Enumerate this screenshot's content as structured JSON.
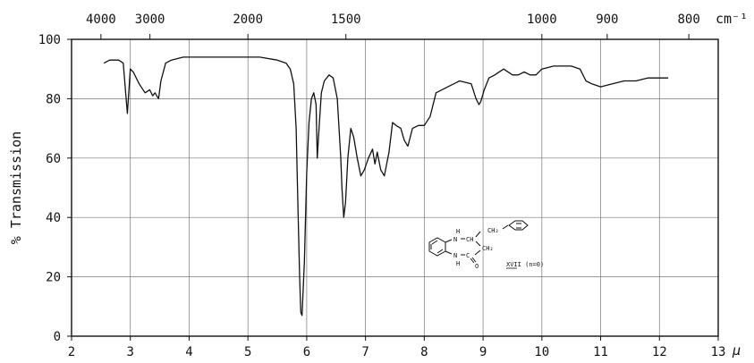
{
  "chart_data": {
    "type": "line",
    "ylabel": "% Transmission",
    "bottom_axis": {
      "unit": "μ",
      "range": [
        2,
        13
      ],
      "ticks": [
        2,
        3,
        4,
        5,
        6,
        7,
        8,
        9,
        10,
        11,
        12,
        13
      ],
      "tick_labels": [
        "2",
        "3",
        "4",
        "5",
        "6",
        "7",
        "8",
        "9",
        "10",
        "11",
        "12",
        "13"
      ]
    },
    "top_axis": {
      "unit": "cm⁻¹",
      "ticks": [
        4000,
        3000,
        2000,
        1500,
        1000,
        900,
        800
      ],
      "tick_labels": [
        "4000",
        "3000",
        "2000",
        "1500",
        "1000",
        "900",
        "800"
      ]
    },
    "y_axis": {
      "range": [
        0,
        100
      ],
      "ticks": [
        0,
        20,
        40,
        60,
        80,
        100
      ],
      "tick_labels": [
        "0",
        "20",
        "40",
        "60",
        "80",
        "100"
      ]
    },
    "grid": true,
    "series": [
      {
        "x": [
          2.55,
          2.65,
          2.8,
          2.88,
          2.92,
          2.95,
          3.0,
          3.05,
          3.15,
          3.25,
          3.33,
          3.38,
          3.42,
          3.48,
          3.52,
          3.6,
          3.7,
          3.9,
          4.3,
          4.8,
          5.2,
          5.5,
          5.65,
          5.72,
          5.78,
          5.82,
          5.85,
          5.88,
          5.9,
          5.92,
          5.96,
          6.0,
          6.04,
          6.08,
          6.12,
          6.16,
          6.18,
          6.21,
          6.25,
          6.3,
          6.38,
          6.45,
          6.52,
          6.58,
          6.6,
          6.63,
          6.66,
          6.7,
          6.75,
          6.8,
          6.86,
          6.92,
          6.98,
          7.05,
          7.12,
          7.16,
          7.2,
          7.26,
          7.32,
          7.4,
          7.46,
          7.52,
          7.6,
          7.66,
          7.72,
          7.8,
          7.9,
          8.0,
          8.1,
          8.2,
          8.4,
          8.6,
          8.8,
          8.88,
          8.93,
          8.96,
          9.02,
          9.1,
          9.2,
          9.35,
          9.5,
          9.6,
          9.7,
          9.8,
          9.9,
          10.0,
          10.2,
          10.5,
          10.65,
          10.75,
          10.85,
          11.0,
          11.2,
          11.4,
          11.6,
          11.8,
          12.0,
          12.15
        ],
        "y": [
          92,
          93,
          93,
          92,
          82,
          75,
          90,
          89,
          85,
          82,
          83,
          81,
          82,
          80,
          86,
          92,
          93,
          94,
          94,
          94,
          94,
          93,
          92,
          90,
          85,
          70,
          45,
          20,
          8,
          7,
          25,
          55,
          72,
          80,
          82,
          78,
          60,
          70,
          82,
          86,
          88,
          87,
          80,
          60,
          50,
          40,
          45,
          60,
          70,
          67,
          60,
          54,
          56,
          60,
          63,
          58,
          62,
          56,
          54,
          62,
          72,
          71,
          70,
          66,
          64,
          70,
          71,
          71,
          74,
          82,
          84,
          86,
          85,
          80,
          78,
          79,
          83,
          87,
          88,
          90,
          88,
          88,
          89,
          88,
          88,
          90,
          91,
          91,
          90,
          86,
          85,
          84,
          85,
          86,
          86,
          87,
          87,
          87
        ]
      }
    ],
    "annotation": {
      "label": "XVII (n=0)",
      "atoms": [
        "H",
        "N",
        "CH",
        "CH₂",
        "CH₂",
        "N",
        "C",
        "O",
        "H"
      ]
    }
  }
}
